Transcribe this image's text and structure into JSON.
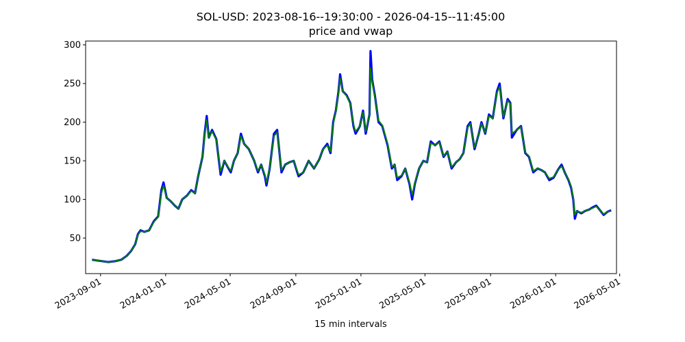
{
  "chart_data": {
    "type": "line",
    "title": "SOL-USD: 2023-08-16--19:30:00 - 2026-04-15--11:45:00",
    "subtitle": "price and vwap",
    "xlabel": "15 min intervals",
    "ylabel": "",
    "xlim": [
      "2023-08-04",
      "2026-04-25"
    ],
    "ylim": [
      4,
      305
    ],
    "x_ticks": [
      "2023-09-01",
      "2024-01-01",
      "2024-05-01",
      "2024-09-01",
      "2025-01-01",
      "2025-05-01",
      "2025-09-01",
      "2026-01-01",
      "2026-05-01"
    ],
    "y_ticks": [
      50,
      100,
      150,
      200,
      250,
      300
    ],
    "grid": false,
    "colors": {
      "price": "#0000ff",
      "vwap": "#008000"
    },
    "series": [
      {
        "name": "",
        "role": "price",
        "points": [
          [
            "2023-08-16",
            22
          ],
          [
            "2023-08-25",
            21
          ],
          [
            "2023-09-05",
            20
          ],
          [
            "2023-09-15",
            19
          ],
          [
            "2023-09-28",
            20
          ],
          [
            "2023-10-10",
            22
          ],
          [
            "2023-10-20",
            27
          ],
          [
            "2023-10-28",
            33
          ],
          [
            "2023-11-05",
            42
          ],
          [
            "2023-11-10",
            55
          ],
          [
            "2023-11-15",
            60
          ],
          [
            "2023-11-22",
            58
          ],
          [
            "2023-12-01",
            60
          ],
          [
            "2023-12-10",
            72
          ],
          [
            "2023-12-18",
            78
          ],
          [
            "2023-12-24",
            112
          ],
          [
            "2023-12-28",
            122
          ],
          [
            "2024-01-03",
            102
          ],
          [
            "2024-01-10",
            98
          ],
          [
            "2024-01-18",
            92
          ],
          [
            "2024-01-25",
            88
          ],
          [
            "2024-02-01",
            100
          ],
          [
            "2024-02-10",
            105
          ],
          [
            "2024-02-18",
            112
          ],
          [
            "2024-02-25",
            108
          ],
          [
            "2024-03-02",
            130
          ],
          [
            "2024-03-10",
            155
          ],
          [
            "2024-03-14",
            185
          ],
          [
            "2024-03-18",
            208
          ],
          [
            "2024-03-22",
            180
          ],
          [
            "2024-03-28",
            190
          ],
          [
            "2024-04-05",
            178
          ],
          [
            "2024-04-13",
            132
          ],
          [
            "2024-04-20",
            150
          ],
          [
            "2024-04-28",
            140
          ],
          [
            "2024-05-02",
            135
          ],
          [
            "2024-05-08",
            150
          ],
          [
            "2024-05-15",
            160
          ],
          [
            "2024-05-21",
            185
          ],
          [
            "2024-05-27",
            172
          ],
          [
            "2024-06-05",
            165
          ],
          [
            "2024-06-15",
            150
          ],
          [
            "2024-06-22",
            135
          ],
          [
            "2024-06-28",
            145
          ],
          [
            "2024-07-05",
            130
          ],
          [
            "2024-07-08",
            118
          ],
          [
            "2024-07-14",
            140
          ],
          [
            "2024-07-22",
            185
          ],
          [
            "2024-07-28",
            190
          ],
          [
            "2024-08-05",
            135
          ],
          [
            "2024-08-12",
            145
          ],
          [
            "2024-08-20",
            148
          ],
          [
            "2024-08-28",
            150
          ],
          [
            "2024-09-06",
            130
          ],
          [
            "2024-09-15",
            135
          ],
          [
            "2024-09-25",
            150
          ],
          [
            "2024-10-05",
            140
          ],
          [
            "2024-10-15",
            152
          ],
          [
            "2024-10-22",
            165
          ],
          [
            "2024-10-30",
            172
          ],
          [
            "2024-11-05",
            160
          ],
          [
            "2024-11-10",
            200
          ],
          [
            "2024-11-15",
            215
          ],
          [
            "2024-11-20",
            240
          ],
          [
            "2024-11-23",
            262
          ],
          [
            "2024-11-28",
            240
          ],
          [
            "2024-12-05",
            235
          ],
          [
            "2024-12-12",
            225
          ],
          [
            "2024-12-18",
            195
          ],
          [
            "2024-12-22",
            185
          ],
          [
            "2024-12-30",
            195
          ],
          [
            "2025-01-05",
            215
          ],
          [
            "2025-01-10",
            185
          ],
          [
            "2025-01-17",
            210
          ],
          [
            "2025-01-19",
            292
          ],
          [
            "2025-01-22",
            255
          ],
          [
            "2025-01-27",
            235
          ],
          [
            "2025-02-03",
            200
          ],
          [
            "2025-02-10",
            195
          ],
          [
            "2025-02-20",
            170
          ],
          [
            "2025-02-28",
            140
          ],
          [
            "2025-03-05",
            145
          ],
          [
            "2025-03-10",
            125
          ],
          [
            "2025-03-18",
            130
          ],
          [
            "2025-03-25",
            140
          ],
          [
            "2025-04-02",
            120
          ],
          [
            "2025-04-07",
            100
          ],
          [
            "2025-04-12",
            120
          ],
          [
            "2025-04-20",
            140
          ],
          [
            "2025-04-28",
            150
          ],
          [
            "2025-05-05",
            148
          ],
          [
            "2025-05-12",
            175
          ],
          [
            "2025-05-20",
            170
          ],
          [
            "2025-05-28",
            175
          ],
          [
            "2025-06-05",
            155
          ],
          [
            "2025-06-12",
            162
          ],
          [
            "2025-06-20",
            140
          ],
          [
            "2025-06-28",
            148
          ],
          [
            "2025-07-05",
            152
          ],
          [
            "2025-07-12",
            160
          ],
          [
            "2025-07-20",
            195
          ],
          [
            "2025-07-25",
            200
          ],
          [
            "2025-08-02",
            165
          ],
          [
            "2025-08-10",
            185
          ],
          [
            "2025-08-15",
            200
          ],
          [
            "2025-08-22",
            185
          ],
          [
            "2025-08-29",
            210
          ],
          [
            "2025-09-05",
            205
          ],
          [
            "2025-09-13",
            240
          ],
          [
            "2025-09-18",
            250
          ],
          [
            "2025-09-25",
            205
          ],
          [
            "2025-10-03",
            230
          ],
          [
            "2025-10-08",
            225
          ],
          [
            "2025-10-11",
            180
          ],
          [
            "2025-10-20",
            190
          ],
          [
            "2025-10-28",
            195
          ],
          [
            "2025-11-05",
            160
          ],
          [
            "2025-11-12",
            155
          ],
          [
            "2025-11-20",
            135
          ],
          [
            "2025-11-28",
            140
          ],
          [
            "2025-12-05",
            138
          ],
          [
            "2025-12-12",
            135
          ],
          [
            "2025-12-20",
            125
          ],
          [
            "2025-12-28",
            128
          ],
          [
            "2026-01-05",
            138
          ],
          [
            "2026-01-12",
            145
          ],
          [
            "2026-01-18",
            135
          ],
          [
            "2026-01-25",
            125
          ],
          [
            "2026-01-30",
            115
          ],
          [
            "2026-02-03",
            100
          ],
          [
            "2026-02-06",
            75
          ],
          [
            "2026-02-10",
            85
          ],
          [
            "2026-02-18",
            82
          ],
          [
            "2026-02-25",
            85
          ],
          [
            "2026-03-05",
            87
          ],
          [
            "2026-03-12",
            90
          ],
          [
            "2026-03-18",
            92
          ],
          [
            "2026-03-25",
            86
          ],
          [
            "2026-04-01",
            80
          ],
          [
            "2026-04-08",
            84
          ],
          [
            "2026-04-15",
            86
          ]
        ]
      },
      {
        "name": "",
        "role": "vwap",
        "points": [
          [
            "2023-08-16",
            22
          ],
          [
            "2023-08-25",
            21
          ],
          [
            "2023-09-05",
            20
          ],
          [
            "2023-09-15",
            19
          ],
          [
            "2023-09-28",
            20
          ],
          [
            "2023-10-10",
            22
          ],
          [
            "2023-10-20",
            27
          ],
          [
            "2023-10-28",
            33
          ],
          [
            "2023-11-05",
            42
          ],
          [
            "2023-11-10",
            54
          ],
          [
            "2023-11-15",
            59
          ],
          [
            "2023-11-22",
            58
          ],
          [
            "2023-12-01",
            60
          ],
          [
            "2023-12-10",
            71
          ],
          [
            "2023-12-18",
            77
          ],
          [
            "2023-12-24",
            108
          ],
          [
            "2023-12-28",
            118
          ],
          [
            "2024-01-03",
            102
          ],
          [
            "2024-01-10",
            98
          ],
          [
            "2024-01-18",
            92
          ],
          [
            "2024-01-25",
            88
          ],
          [
            "2024-02-01",
            100
          ],
          [
            "2024-02-10",
            105
          ],
          [
            "2024-02-18",
            111
          ],
          [
            "2024-02-25",
            108
          ],
          [
            "2024-03-02",
            130
          ],
          [
            "2024-03-10",
            155
          ],
          [
            "2024-03-14",
            183
          ],
          [
            "2024-03-18",
            203
          ],
          [
            "2024-03-22",
            180
          ],
          [
            "2024-03-28",
            188
          ],
          [
            "2024-04-05",
            177
          ],
          [
            "2024-04-13",
            136
          ],
          [
            "2024-04-20",
            150
          ],
          [
            "2024-04-28",
            141
          ],
          [
            "2024-05-02",
            137
          ],
          [
            "2024-05-08",
            150
          ],
          [
            "2024-05-15",
            160
          ],
          [
            "2024-05-21",
            182
          ],
          [
            "2024-05-27",
            172
          ],
          [
            "2024-06-05",
            165
          ],
          [
            "2024-06-15",
            150
          ],
          [
            "2024-06-22",
            137
          ],
          [
            "2024-06-28",
            145
          ],
          [
            "2024-07-05",
            132
          ],
          [
            "2024-07-08",
            122
          ],
          [
            "2024-07-14",
            140
          ],
          [
            "2024-07-22",
            182
          ],
          [
            "2024-07-28",
            187
          ],
          [
            "2024-08-05",
            138
          ],
          [
            "2024-08-12",
            145
          ],
          [
            "2024-08-20",
            148
          ],
          [
            "2024-08-28",
            150
          ],
          [
            "2024-09-06",
            132
          ],
          [
            "2024-09-15",
            135
          ],
          [
            "2024-09-25",
            150
          ],
          [
            "2024-10-05",
            140
          ],
          [
            "2024-10-15",
            152
          ],
          [
            "2024-10-22",
            165
          ],
          [
            "2024-10-30",
            170
          ],
          [
            "2024-11-05",
            162
          ],
          [
            "2024-11-10",
            198
          ],
          [
            "2024-11-15",
            214
          ],
          [
            "2024-11-20",
            238
          ],
          [
            "2024-11-23",
            257
          ],
          [
            "2024-11-28",
            240
          ],
          [
            "2024-12-05",
            234
          ],
          [
            "2024-12-12",
            224
          ],
          [
            "2024-12-18",
            197
          ],
          [
            "2024-12-22",
            188
          ],
          [
            "2024-12-30",
            195
          ],
          [
            "2025-01-05",
            213
          ],
          [
            "2025-01-10",
            188
          ],
          [
            "2025-01-17",
            210
          ],
          [
            "2025-01-19",
            270
          ],
          [
            "2025-01-22",
            252
          ],
          [
            "2025-01-27",
            233
          ],
          [
            "2025-02-03",
            202
          ],
          [
            "2025-02-10",
            196
          ],
          [
            "2025-02-20",
            172
          ],
          [
            "2025-02-28",
            142
          ],
          [
            "2025-03-05",
            145
          ],
          [
            "2025-03-10",
            128
          ],
          [
            "2025-03-18",
            131
          ],
          [
            "2025-03-25",
            140
          ],
          [
            "2025-04-02",
            122
          ],
          [
            "2025-04-07",
            106
          ],
          [
            "2025-04-12",
            121
          ],
          [
            "2025-04-20",
            140
          ],
          [
            "2025-04-28",
            150
          ],
          [
            "2025-05-05",
            148
          ],
          [
            "2025-05-12",
            173
          ],
          [
            "2025-05-20",
            170
          ],
          [
            "2025-05-28",
            174
          ],
          [
            "2025-06-05",
            156
          ],
          [
            "2025-06-12",
            162
          ],
          [
            "2025-06-20",
            142
          ],
          [
            "2025-06-28",
            148
          ],
          [
            "2025-07-05",
            152
          ],
          [
            "2025-07-12",
            160
          ],
          [
            "2025-07-20",
            193
          ],
          [
            "2025-07-25",
            198
          ],
          [
            "2025-08-02",
            167
          ],
          [
            "2025-08-10",
            185
          ],
          [
            "2025-08-15",
            198
          ],
          [
            "2025-08-22",
            186
          ],
          [
            "2025-08-29",
            208
          ],
          [
            "2025-09-05",
            205
          ],
          [
            "2025-09-13",
            238
          ],
          [
            "2025-09-18",
            246
          ],
          [
            "2025-09-25",
            207
          ],
          [
            "2025-10-03",
            228
          ],
          [
            "2025-10-08",
            224
          ],
          [
            "2025-10-11",
            185
          ],
          [
            "2025-10-20",
            190
          ],
          [
            "2025-10-28",
            194
          ],
          [
            "2025-11-05",
            161
          ],
          [
            "2025-11-12",
            156
          ],
          [
            "2025-11-20",
            137
          ],
          [
            "2025-11-28",
            140
          ],
          [
            "2025-12-05",
            138
          ],
          [
            "2025-12-12",
            135
          ],
          [
            "2025-12-20",
            127
          ],
          [
            "2025-12-28",
            129
          ],
          [
            "2026-01-05",
            138
          ],
          [
            "2026-01-12",
            143
          ],
          [
            "2026-01-18",
            135
          ],
          [
            "2026-01-25",
            126
          ],
          [
            "2026-01-30",
            117
          ],
          [
            "2026-02-03",
            102
          ],
          [
            "2026-02-06",
            80
          ],
          [
            "2026-02-10",
            85
          ],
          [
            "2026-02-18",
            83
          ],
          [
            "2026-02-25",
            85
          ],
          [
            "2026-03-05",
            87
          ],
          [
            "2026-03-12",
            89
          ],
          [
            "2026-03-18",
            91
          ],
          [
            "2026-03-25",
            86
          ],
          [
            "2026-04-01",
            81
          ],
          [
            "2026-04-08",
            84
          ],
          [
            "2026-04-15",
            85
          ]
        ]
      }
    ]
  }
}
